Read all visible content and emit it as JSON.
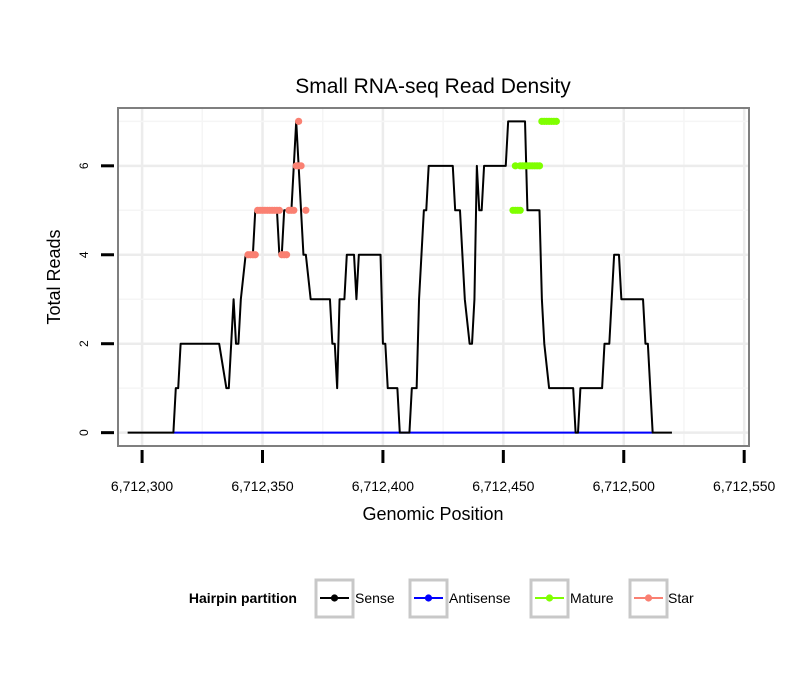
{
  "chart_data": {
    "type": "line",
    "title": "Small RNA-seq Read Density",
    "xlabel": "Genomic Position",
    "ylabel": "Total Reads",
    "xlim": [
      6712290,
      6712552
    ],
    "ylim": [
      -0.3,
      7.3
    ],
    "x_ticks": [
      6712300,
      6712350,
      6712400,
      6712450,
      6712500,
      6712550
    ],
    "x_tick_labels": [
      "6,712,300",
      "6,712,350",
      "6,712,400",
      "6,712,450",
      "6,712,500",
      "6,712,550"
    ],
    "y_ticks": [
      0,
      2,
      4,
      6
    ],
    "y_tick_labels": [
      "0",
      "2",
      "4",
      "6"
    ],
    "grid": true,
    "legend": {
      "title": "Hairpin partition",
      "position": "bottom",
      "entries": [
        {
          "name": "Sense",
          "color": "#000000"
        },
        {
          "name": "Antisense",
          "color": "#0000ff"
        },
        {
          "name": "Mature",
          "color": "#7fff00"
        },
        {
          "name": "Star",
          "color": "#fa8072"
        }
      ]
    },
    "series": [
      {
        "name": "Sense",
        "color": "#000000",
        "points": [
          [
            6712294,
            0
          ],
          [
            6712313,
            0
          ],
          [
            6712314,
            1
          ],
          [
            6712315,
            1
          ],
          [
            6712316,
            2
          ],
          [
            6712326,
            2
          ],
          [
            6712332,
            2
          ],
          [
            6712335,
            1
          ],
          [
            6712336,
            1
          ],
          [
            6712338,
            3
          ],
          [
            6712339,
            2
          ],
          [
            6712340,
            2
          ],
          [
            6712341,
            3
          ],
          [
            6712343,
            4
          ],
          [
            6712346,
            4
          ],
          [
            6712347,
            5
          ],
          [
            6712352,
            5
          ],
          [
            6712356,
            5
          ],
          [
            6712357,
            4
          ],
          [
            6712358,
            4
          ],
          [
            6712359,
            5
          ],
          [
            6712362,
            5
          ],
          [
            6712363,
            6
          ],
          [
            6712364,
            7
          ],
          [
            6712365,
            6
          ],
          [
            6712366,
            5
          ],
          [
            6712367,
            4
          ],
          [
            6712368,
            4
          ],
          [
            6712370,
            3
          ],
          [
            6712378,
            3
          ],
          [
            6712379,
            2
          ],
          [
            6712380,
            2
          ],
          [
            6712381,
            1
          ],
          [
            6712382,
            3
          ],
          [
            6712384,
            3
          ],
          [
            6712385,
            4
          ],
          [
            6712388,
            4
          ],
          [
            6712389,
            3
          ],
          [
            6712390,
            4
          ],
          [
            6712399,
            4
          ],
          [
            6712400,
            2
          ],
          [
            6712401,
            2
          ],
          [
            6712402,
            1
          ],
          [
            6712406,
            1
          ],
          [
            6712407,
            0
          ],
          [
            6712411,
            0
          ],
          [
            6712412,
            1
          ],
          [
            6712414,
            1
          ],
          [
            6712415,
            3
          ],
          [
            6712416,
            4
          ],
          [
            6712417,
            5
          ],
          [
            6712418,
            5
          ],
          [
            6712419,
            6
          ],
          [
            6712429,
            6
          ],
          [
            6712430,
            5
          ],
          [
            6712432,
            5
          ],
          [
            6712433,
            4
          ],
          [
            6712434,
            3
          ],
          [
            6712436,
            2
          ],
          [
            6712437,
            2
          ],
          [
            6712438,
            3
          ],
          [
            6712439,
            6
          ],
          [
            6712440,
            5
          ],
          [
            6712441,
            5
          ],
          [
            6712442,
            6
          ],
          [
            6712451,
            6
          ],
          [
            6712452,
            7
          ],
          [
            6712459,
            7
          ],
          [
            6712460,
            5
          ],
          [
            6712465,
            5
          ],
          [
            6712466,
            3
          ],
          [
            6712467,
            2
          ],
          [
            6712469,
            1
          ],
          [
            6712479,
            1
          ],
          [
            6712480,
            0
          ],
          [
            6712481,
            0
          ],
          [
            6712482,
            1
          ],
          [
            6712491,
            1
          ],
          [
            6712492,
            2
          ],
          [
            6712494,
            2
          ],
          [
            6712495,
            3
          ],
          [
            6712496,
            4
          ],
          [
            6712498,
            4
          ],
          [
            6712499,
            3
          ],
          [
            6712508,
            3
          ],
          [
            6712509,
            2
          ],
          [
            6712510,
            2
          ],
          [
            6712511,
            1
          ],
          [
            6712512,
            0
          ],
          [
            6712520,
            0
          ]
        ]
      },
      {
        "name": "Antisense",
        "color": "#0000ff",
        "points": [
          [
            6712313,
            0
          ],
          [
            6712512,
            0
          ]
        ]
      },
      {
        "name": "Mature",
        "color": "#7fff00",
        "points": [
          [
            6712454,
            5
          ],
          [
            6712455,
            5
          ],
          [
            6712456,
            5
          ],
          [
            6712457,
            5
          ],
          [
            6712455,
            6
          ],
          [
            6712457,
            6
          ],
          [
            6712458,
            6
          ],
          [
            6712459,
            6
          ],
          [
            6712460,
            6
          ],
          [
            6712461,
            6
          ],
          [
            6712462,
            6
          ],
          [
            6712463,
            6
          ],
          [
            6712464,
            6
          ],
          [
            6712465,
            6
          ],
          [
            6712466,
            7
          ],
          [
            6712467,
            7
          ],
          [
            6712468,
            7
          ],
          [
            6712469,
            7
          ],
          [
            6712470,
            7
          ],
          [
            6712471,
            7
          ],
          [
            6712472,
            7
          ]
        ]
      },
      {
        "name": "Star",
        "color": "#fa8072",
        "points": [
          [
            6712344,
            4
          ],
          [
            6712345,
            4
          ],
          [
            6712346,
            4
          ],
          [
            6712347,
            4
          ],
          [
            6712348,
            5
          ],
          [
            6712349,
            5
          ],
          [
            6712350,
            5
          ],
          [
            6712351,
            5
          ],
          [
            6712352,
            5
          ],
          [
            6712353,
            5
          ],
          [
            6712354,
            5
          ],
          [
            6712355,
            5
          ],
          [
            6712356,
            5
          ],
          [
            6712357,
            5
          ],
          [
            6712358,
            4
          ],
          [
            6712359,
            4
          ],
          [
            6712360,
            4
          ],
          [
            6712361,
            5
          ],
          [
            6712362,
            5
          ],
          [
            6712363,
            5
          ],
          [
            6712364,
            6
          ],
          [
            6712365,
            6
          ],
          [
            6712366,
            6
          ],
          [
            6712365,
            7
          ],
          [
            6712368,
            5
          ]
        ]
      }
    ]
  }
}
